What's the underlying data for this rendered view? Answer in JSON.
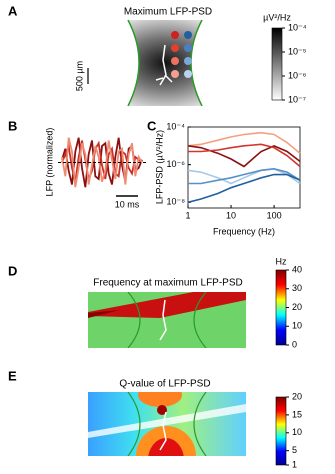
{
  "chart_data": [
    {
      "type": "heatmap",
      "panel_label": "A",
      "title": "Maximum LFP-PSD",
      "scale_bar": "500 µm",
      "colorbar": {
        "label": "µV²/Hz",
        "colormap": "gray",
        "log": true,
        "lim": [
          1e-07,
          0.0001
        ],
        "ticks": [
          {
            "value": 0.0001,
            "label": "10⁻⁴"
          },
          {
            "value": 1e-05,
            "label": "10⁻⁵"
          },
          {
            "value": 1e-06,
            "label": "10⁻⁶"
          },
          {
            "value": 1e-07,
            "label": "10⁻⁷"
          }
        ]
      }
    },
    {
      "type": "line",
      "panel_label": "B",
      "ylabel": "LFP (normalized)",
      "scale_bar": "10 ms",
      "ylim": [
        -1,
        1
      ],
      "series": [
        {
          "color": "#8b1010",
          "values": [
            0.1,
            0.5,
            -0.3,
            -0.8,
            0.4,
            0.9,
            -0.2,
            -0.9,
            0.3,
            0.8,
            -0.5,
            -0.6,
            0.6,
            0.7,
            -0.4,
            -0.8,
            0.2,
            0.9,
            -0.1,
            -0.7,
            0.5,
            0.6,
            -0.3,
            -0.2,
            0.1
          ]
        },
        {
          "color": "#c8302c",
          "values": [
            0,
            0.3,
            0.6,
            -0.2,
            -0.7,
            0.2,
            0.8,
            0.1,
            -0.6,
            -0.3,
            0.5,
            0.7,
            -0.1,
            -0.6,
            0.3,
            0.5,
            -0.4,
            -0.5,
            0.4,
            0.3,
            -0.2,
            -0.4,
            0.2,
            0.1,
            0
          ]
        },
        {
          "color": "#f08a70",
          "values": [
            0.2,
            -0.5,
            0.9,
            0.4,
            -0.9,
            -0.2,
            0.7,
            0.3,
            -0.8,
            -0.1,
            0.6,
            0.2,
            -0.7,
            -0.3,
            0.8,
            0.1,
            -0.6,
            0.4,
            0.5,
            -0.8,
            0.3,
            0.7,
            -0.5,
            0.2,
            0
          ]
        }
      ]
    },
    {
      "type": "line",
      "panel_label": "C",
      "xlabel": "Frequency (Hz)",
      "ylabel": "LFP-PSD (µV²/Hz)",
      "log_x": true,
      "log_y": true,
      "xlim": [
        1,
        400
      ],
      "ylim": [
        5e-09,
        0.0001
      ],
      "xticks": [
        1,
        10,
        100
      ],
      "yticks": [
        {
          "value": 1e-08,
          "label": "10⁻⁸"
        },
        {
          "value": 1e-06,
          "label": "10⁻⁶"
        },
        {
          "value": 0.0001,
          "label": "10⁻⁴"
        }
      ],
      "x": [
        1,
        2,
        5,
        10,
        20,
        50,
        100,
        200,
        400
      ],
      "series": [
        {
          "color": "#f4a07f",
          "values": [
            1e-05,
            1.2e-05,
            2e-05,
            3e-05,
            4e-05,
            5e-05,
            4e-05,
            1.5e-05,
            4e-06
          ]
        },
        {
          "color": "#8b1010",
          "values": [
            1e-05,
            8e-06,
            4e-06,
            2e-06,
            8e-07,
            5e-06,
            1e-05,
            5e-06,
            1.5e-06
          ]
        },
        {
          "color": "#d0352e",
          "values": [
            5e-06,
            5e-06,
            6e-06,
            8e-06,
            1e-05,
            1.2e-05,
            8e-06,
            3e-06,
            8e-07
          ]
        },
        {
          "color": "#a8c8e8",
          "values": [
            5e-07,
            4e-07,
            2e-07,
            1e-07,
            2e-07,
            5e-07,
            6e-07,
            3e-07,
            1e-07
          ]
        },
        {
          "color": "#5a90c8",
          "values": [
            1e-07,
            1e-07,
            1.5e-07,
            2e-07,
            3e-07,
            5e-07,
            6e-07,
            4e-07,
            1.5e-07
          ]
        },
        {
          "color": "#2060a0",
          "values": [
            1e-08,
            1.5e-08,
            3e-08,
            6e-08,
            1e-07,
            2e-07,
            3e-07,
            3e-07,
            1.5e-07
          ]
        }
      ]
    },
    {
      "type": "heatmap",
      "panel_label": "D",
      "title": "Frequency at maximum LFP-PSD",
      "colorbar": {
        "label": "Hz",
        "colormap": "jet",
        "log": false,
        "lim": [
          0,
          40
        ],
        "ticks": [
          0,
          10,
          20,
          30,
          40
        ]
      }
    },
    {
      "type": "heatmap",
      "panel_label": "E",
      "title": "Q-value of LFP-PSD",
      "colorbar": {
        "colormap": "jet",
        "log": false,
        "lim": [
          1,
          20
        ],
        "ticks": [
          1,
          5,
          10,
          15,
          20
        ]
      }
    }
  ]
}
